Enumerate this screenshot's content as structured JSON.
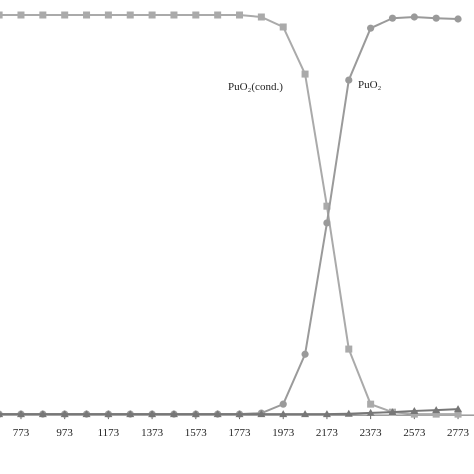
{
  "chart_data": {
    "type": "line",
    "x": [
      673,
      773,
      873,
      973,
      1073,
      1173,
      1273,
      1373,
      1473,
      1573,
      1673,
      1773,
      1873,
      1973,
      2073,
      2173,
      2273,
      2373,
      2473,
      2573,
      2673,
      2773
    ],
    "xlim": [
      677,
      2846
    ],
    "xticks": [
      773,
      973,
      1173,
      1373,
      1573,
      1773,
      1973,
      2173,
      2373,
      2573,
      2773
    ],
    "ylim": [
      -0.15,
      1.0376
    ],
    "series": [
      {
        "name": "PuO₂(cond.)",
        "color": "#aaaaaa",
        "marker": "square",
        "values": [
          1,
          1,
          1,
          1,
          1,
          1,
          1,
          1,
          1,
          1,
          1,
          1,
          0.995,
          0.97,
          0.852,
          0.521,
          0.163,
          0.025,
          0.005,
          0,
          0,
          0
        ]
      },
      {
        "name": "PuO₂",
        "color": "#9a9a9a",
        "marker": "circle",
        "values": [
          0,
          0,
          0,
          0,
          0,
          0,
          0,
          0,
          0,
          0,
          0,
          0,
          0.0025,
          0.025,
          0.15,
          0.479,
          0.837,
          0.967,
          0.992,
          0.995,
          0.992,
          0.99
        ]
      },
      {
        "color": "#777777",
        "marker": "triangle",
        "values": [
          0,
          0,
          0,
          0,
          0,
          0,
          0,
          0,
          0,
          0,
          0,
          0,
          0,
          0,
          0,
          0,
          0.001,
          0.003,
          0.005,
          0.008,
          0.01,
          0.0125
        ]
      }
    ]
  }
}
